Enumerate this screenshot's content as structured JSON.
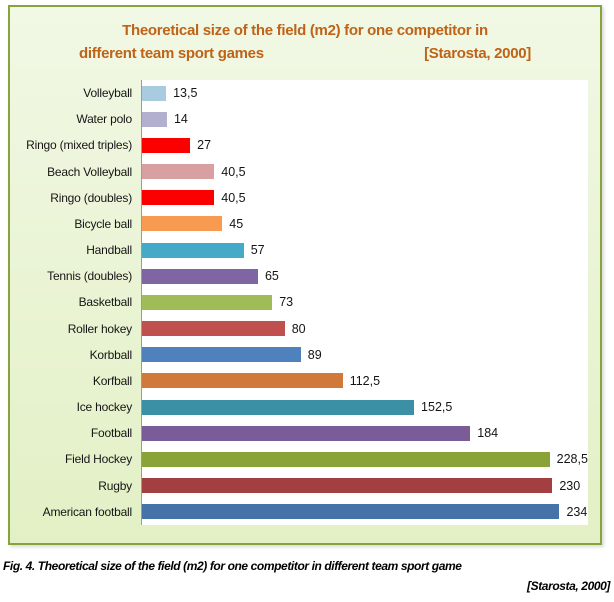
{
  "title": {
    "line1": "Theoretical size of the field (m2) for one competitor in",
    "line2_left": "different team sport games",
    "line2_right": "[Starosta, 2000]",
    "color": "#BE6317"
  },
  "chart_data": {
    "type": "bar",
    "orientation": "horizontal",
    "title": "Theoretical size of the field (m2) for one competitor in different team sport games [Starosta, 2000]",
    "xlabel": "",
    "ylabel": "",
    "xlim": [
      0,
      250
    ],
    "grid": false,
    "legend": false,
    "categories": [
      "Volleyball",
      "Water polo",
      "Ringo (mixed triples)",
      "Beach Volleyball",
      "Ringo (doubles)",
      "Bicycle ball",
      "Handball",
      "Tennis (doubles)",
      "Basketball",
      "Roller hokey",
      "Korbball",
      "Korfball",
      "Ice hockey",
      "Football",
      "Field Hockey",
      "Rugby",
      "American football"
    ],
    "values": [
      13.5,
      14,
      27,
      40.5,
      40.5,
      45,
      57,
      65,
      73,
      80,
      89,
      112.5,
      152.5,
      184,
      228.5,
      230,
      234
    ],
    "value_labels": [
      "13,5",
      "14",
      "27",
      "40,5",
      "40,5",
      "45",
      "57",
      "65",
      "73",
      "80",
      "89",
      "112,5",
      "152,5",
      "184",
      "228,5",
      "230",
      "234"
    ],
    "bar_colors": [
      "#A9CBDF",
      "#B3AFCF",
      "#FC0000",
      "#D9A0A1",
      "#FC0000",
      "#F89B51",
      "#44AAC7",
      "#8065A3",
      "#A0BC59",
      "#C0504D",
      "#4F81BD",
      "#D0793B",
      "#3B90A6",
      "#7A5C99",
      "#8AA338",
      "#A43F41",
      "#4572A7"
    ]
  },
  "caption": {
    "line1": "Fig. 4. Theoretical size of the field (m2) for one competitor in different team sport game",
    "line2": "[Starosta, 2000]"
  },
  "colors": {
    "panel_bg": "#E9F4D4",
    "panel_border": "#86A33E",
    "plot_bg": "#FFFFFF",
    "axis_line": "#9B9B9B",
    "title_text": "#BE6317",
    "label_text": "#151515"
  }
}
